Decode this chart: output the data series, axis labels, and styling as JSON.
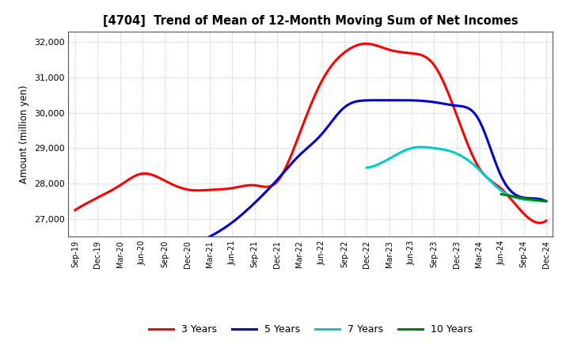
{
  "title": "[4704]  Trend of Mean of 12-Month Moving Sum of Net Incomes",
  "ylabel": "Amount (million yen)",
  "background_color": "#ffffff",
  "grid_color": "#aaaaaa",
  "x_labels": [
    "Sep-19",
    "Dec-19",
    "Mar-20",
    "Jun-20",
    "Sep-20",
    "Dec-20",
    "Mar-21",
    "Jun-21",
    "Sep-21",
    "Dec-21",
    "Mar-22",
    "Jun-22",
    "Sep-22",
    "Dec-22",
    "Mar-23",
    "Jun-23",
    "Sep-23",
    "Dec-23",
    "Mar-24",
    "Jun-24",
    "Sep-24",
    "Dec-24"
  ],
  "ylim": [
    26500,
    32300
  ],
  "yticks": [
    27000,
    28000,
    29000,
    30000,
    31000,
    32000
  ],
  "series": {
    "3yr": {
      "color": "#ff0000",
      "label": "3 Years",
      "x": [
        0,
        1,
        2,
        3,
        4,
        5,
        6,
        7,
        8,
        9,
        10,
        11,
        12,
        13,
        14,
        15,
        16,
        17,
        18,
        19,
        20,
        21
      ],
      "y": [
        27250,
        27600,
        27950,
        28280,
        28080,
        27830,
        27820,
        27870,
        27950,
        28050,
        29400,
        30900,
        31700,
        31950,
        31780,
        31680,
        31350,
        29950,
        28450,
        27850,
        27150,
        26950
      ]
    },
    "5yr": {
      "color": "#0000cc",
      "label": "5 Years",
      "x": [
        5,
        6,
        7,
        8,
        9,
        10,
        11,
        12,
        13,
        14,
        15,
        16,
        17,
        18,
        19,
        20,
        21
      ],
      "y": [
        26200,
        26500,
        26900,
        27450,
        28100,
        28800,
        29400,
        30150,
        30350,
        30350,
        30350,
        30300,
        30200,
        29800,
        28200,
        27600,
        27500
      ]
    },
    "7yr": {
      "color": "#00cccc",
      "label": "7 Years",
      "x": [
        13,
        14,
        15,
        16,
        17,
        18,
        19,
        20,
        21
      ],
      "y": [
        28450,
        28700,
        29000,
        29000,
        28850,
        28400,
        27800,
        27550,
        27500
      ]
    },
    "10yr": {
      "color": "#008000",
      "label": "10 Years",
      "x": [
        19,
        20,
        21
      ],
      "y": [
        27700,
        27580,
        27500
      ]
    }
  },
  "legend_labels": [
    "3 Years",
    "5 Years",
    "7 Years",
    "10 Years"
  ],
  "legend_colors": [
    "#ff0000",
    "#0000cc",
    "#00cccc",
    "#008000"
  ]
}
